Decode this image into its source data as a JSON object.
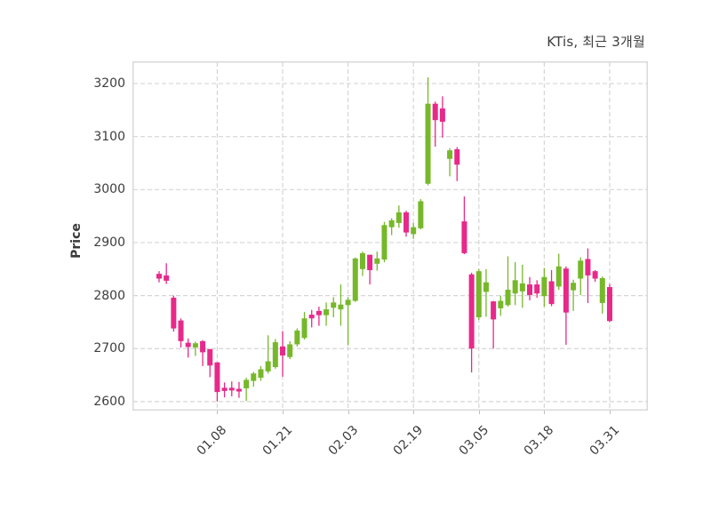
{
  "header": {
    "title": "KTis, 최근 3개월"
  },
  "chart_data": {
    "type": "candlestick",
    "title": "KTis, 최근 3개월",
    "xlabel": "",
    "ylabel": "Price",
    "grid": true,
    "legend": "none",
    "ylim": [
      2583,
      3242
    ],
    "yticks": [
      2600,
      2700,
      2800,
      2900,
      3000,
      3100,
      3200
    ],
    "xtick_labels": [
      "01.08",
      "01.21",
      "02.03",
      "02.19",
      "03.05",
      "03.18",
      "03.31"
    ],
    "xtick_indices": [
      8,
      17,
      26,
      35,
      44,
      53,
      62
    ],
    "colors": {
      "up": "#76b82a",
      "down": "#e7298a",
      "grid": "#d5d5d5",
      "border": "#d9d9d9",
      "text": "#3d3d3d"
    },
    "ohlc_order": [
      "open",
      "high",
      "low",
      "close"
    ],
    "candles": [
      [
        2841,
        2846,
        2825,
        2832
      ],
      [
        2838,
        2861,
        2822,
        2828
      ],
      [
        2796,
        2800,
        2732,
        2738
      ],
      [
        2753,
        2757,
        2702,
        2714
      ],
      [
        2711,
        2719,
        2683,
        2703
      ],
      [
        2702,
        2713,
        2686,
        2710
      ],
      [
        2714,
        2716,
        2667,
        2693
      ],
      [
        2699,
        2699,
        2646,
        2668
      ],
      [
        2674,
        2674,
        2600,
        2618
      ],
      [
        2626,
        2636,
        2608,
        2620
      ],
      [
        2626,
        2638,
        2610,
        2621
      ],
      [
        2624,
        2637,
        2607,
        2619
      ],
      [
        2625,
        2645,
        2601,
        2641
      ],
      [
        2639,
        2656,
        2628,
        2653
      ],
      [
        2645,
        2667,
        2639,
        2661
      ],
      [
        2657,
        2725,
        2653,
        2676
      ],
      [
        2665,
        2718,
        2662,
        2712
      ],
      [
        2704,
        2733,
        2647,
        2687
      ],
      [
        2684,
        2714,
        2680,
        2708
      ],
      [
        2708,
        2738,
        2704,
        2734
      ],
      [
        2720,
        2769,
        2717,
        2757
      ],
      [
        2764,
        2773,
        2740,
        2757
      ],
      [
        2771,
        2779,
        2743,
        2763
      ],
      [
        2763,
        2787,
        2743,
        2774
      ],
      [
        2777,
        2797,
        2759,
        2787
      ],
      [
        2774,
        2821,
        2743,
        2783
      ],
      [
        2782,
        2797,
        2706,
        2792
      ],
      [
        2790,
        2872,
        2788,
        2870
      ],
      [
        2850,
        2883,
        2837,
        2880
      ],
      [
        2877,
        2877,
        2821,
        2848
      ],
      [
        2860,
        2883,
        2847,
        2870
      ],
      [
        2868,
        2939,
        2863,
        2933
      ],
      [
        2929,
        2946,
        2914,
        2942
      ],
      [
        2937,
        2970,
        2928,
        2957
      ],
      [
        2957,
        2960,
        2911,
        2919
      ],
      [
        2916,
        2937,
        2907,
        2929
      ],
      [
        2927,
        2982,
        2925,
        2978
      ],
      [
        3011,
        3212,
        3008,
        3162
      ],
      [
        3162,
        3166,
        3081,
        3131
      ],
      [
        3153,
        3176,
        3098,
        3128
      ],
      [
        3058,
        3078,
        3025,
        3074
      ],
      [
        3076,
        3080,
        3016,
        3047
      ],
      [
        2940,
        2987,
        2878,
        2880
      ],
      [
        2840,
        2843,
        2655,
        2700
      ],
      [
        2759,
        2850,
        2754,
        2846
      ],
      [
        2807,
        2850,
        2760,
        2825
      ],
      [
        2789,
        2790,
        2700,
        2755
      ],
      [
        2776,
        2800,
        2762,
        2790
      ],
      [
        2782,
        2874,
        2779,
        2811
      ],
      [
        2804,
        2863,
        2782,
        2829
      ],
      [
        2808,
        2858,
        2777,
        2823
      ],
      [
        2821,
        2835,
        2791,
        2801
      ],
      [
        2821,
        2829,
        2796,
        2804
      ],
      [
        2799,
        2852,
        2779,
        2835
      ],
      [
        2827,
        2848,
        2780,
        2784
      ],
      [
        2817,
        2879,
        2811,
        2855
      ],
      [
        2851,
        2855,
        2707,
        2768
      ],
      [
        2810,
        2830,
        2771,
        2824
      ],
      [
        2832,
        2872,
        2801,
        2866
      ],
      [
        2869,
        2889,
        2786,
        2838
      ],
      [
        2846,
        2848,
        2826,
        2832
      ],
      [
        2786,
        2836,
        2766,
        2833
      ],
      [
        2816,
        2822,
        2750,
        2752
      ]
    ]
  }
}
